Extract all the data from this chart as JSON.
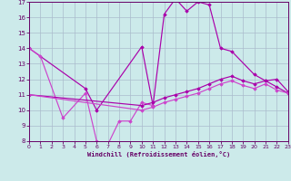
{
  "xlabel": "Windchill (Refroidissement éolien,°C)",
  "xlim": [
    0,
    23
  ],
  "ylim": [
    8,
    17
  ],
  "yticks": [
    8,
    9,
    10,
    11,
    12,
    13,
    14,
    15,
    16,
    17
  ],
  "xticks": [
    0,
    1,
    2,
    3,
    4,
    5,
    6,
    7,
    8,
    9,
    10,
    11,
    12,
    13,
    14,
    15,
    16,
    17,
    18,
    19,
    20,
    21,
    22,
    23
  ],
  "bg_color": "#cceaea",
  "grid_color": "#aabbcc",
  "c1": "#aa00aa",
  "c2": "#cc44cc",
  "line1_x": [
    0,
    5,
    6,
    10,
    11,
    12,
    13,
    14,
    15,
    16,
    17,
    18,
    20,
    21,
    22,
    23
  ],
  "line1_y": [
    14.0,
    11.4,
    10.0,
    14.1,
    10.3,
    16.2,
    17.2,
    16.4,
    17.0,
    16.8,
    14.0,
    13.8,
    12.3,
    11.9,
    12.0,
    11.2
  ],
  "line2_x": [
    0,
    1,
    3,
    5,
    6,
    7,
    8,
    9,
    10,
    11
  ],
  "line2_y": [
    14.0,
    13.5,
    9.5,
    11.1,
    8.0,
    7.8,
    9.3,
    9.3,
    10.5,
    10.3
  ],
  "line3_x": [
    0,
    10,
    11,
    12,
    13,
    14,
    15,
    16,
    17,
    18,
    19,
    20,
    21,
    22,
    23
  ],
  "line3_y": [
    11.0,
    10.3,
    10.5,
    10.8,
    11.0,
    11.2,
    11.4,
    11.7,
    12.0,
    12.2,
    11.9,
    11.7,
    11.9,
    11.5,
    11.1
  ],
  "line4_x": [
    0,
    10,
    11,
    12,
    13,
    14,
    15,
    16,
    17,
    18,
    19,
    20,
    21,
    22,
    23
  ],
  "line4_y": [
    11.0,
    10.0,
    10.2,
    10.5,
    10.7,
    10.9,
    11.1,
    11.4,
    11.7,
    11.9,
    11.6,
    11.4,
    11.7,
    11.3,
    11.1
  ]
}
